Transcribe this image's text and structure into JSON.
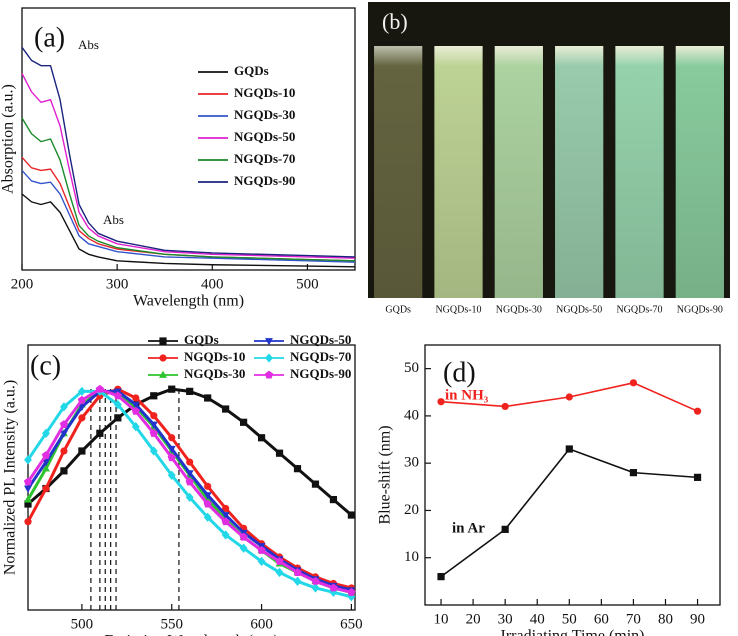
{
  "chart_data": [
    {
      "type": "line",
      "title": "(a)",
      "xlabel": "Wavelength (nm)",
      "ylabel": "Absorption (a.u.)",
      "x": [
        200,
        210,
        220,
        230,
        240,
        250,
        260,
        270,
        280,
        300,
        350,
        400,
        500,
        550
      ],
      "xlim": [
        200,
        550
      ],
      "xticks": [
        200,
        300,
        400,
        500
      ],
      "ylim": [
        0,
        1
      ],
      "legend": "right",
      "annotations": [
        "Abs",
        "Abs"
      ],
      "series": [
        {
          "name": "GQDs",
          "color": "#111111",
          "values": [
            0.29,
            0.26,
            0.25,
            0.26,
            0.22,
            0.15,
            0.08,
            0.06,
            0.05,
            0.035,
            0.025,
            0.02,
            0.015,
            0.012
          ]
        },
        {
          "name": "NGQDs-10",
          "color": "#e8262a",
          "values": [
            0.43,
            0.39,
            0.38,
            0.385,
            0.33,
            0.24,
            0.15,
            0.12,
            0.1,
            0.08,
            0.06,
            0.05,
            0.04,
            0.035
          ]
        },
        {
          "name": "NGQDs-30",
          "color": "#3355cc",
          "values": [
            0.38,
            0.34,
            0.33,
            0.335,
            0.29,
            0.21,
            0.13,
            0.1,
            0.09,
            0.07,
            0.05,
            0.045,
            0.035,
            0.03
          ]
        },
        {
          "name": "NGQDs-50",
          "color": "#e020d0",
          "values": [
            0.75,
            0.68,
            0.64,
            0.65,
            0.55,
            0.38,
            0.22,
            0.16,
            0.13,
            0.1,
            0.07,
            0.06,
            0.05,
            0.045
          ]
        },
        {
          "name": "NGQDs-70",
          "color": "#1a8a2a",
          "values": [
            0.58,
            0.52,
            0.49,
            0.5,
            0.42,
            0.29,
            0.17,
            0.13,
            0.11,
            0.085,
            0.06,
            0.05,
            0.04,
            0.035
          ]
        },
        {
          "name": "NGQDs-90",
          "color": "#1a237e",
          "values": [
            0.85,
            0.8,
            0.78,
            0.78,
            0.65,
            0.44,
            0.25,
            0.18,
            0.14,
            0.11,
            0.075,
            0.065,
            0.055,
            0.05
          ]
        }
      ]
    },
    {
      "type": "photo",
      "title": "(b)",
      "categories": [
        "GQDs",
        "NGQDs-10",
        "NGQDs-30",
        "NGQDs-50",
        "NGQDs-70",
        "NGQDs-90"
      ],
      "colors": [
        "#7d7d50",
        "#c6dc9c",
        "#b4dca8",
        "#9fd4b4",
        "#9cdcb4",
        "#8ed4a4"
      ]
    },
    {
      "type": "line",
      "title": "(c)",
      "xlabel": "Emission Wavelength (nm)",
      "ylabel": "Normalized PL Intensity (a.u.)",
      "x": [
        470,
        480,
        490,
        500,
        510,
        520,
        530,
        540,
        550,
        560,
        570,
        580,
        590,
        600,
        610,
        620,
        630,
        640,
        650
      ],
      "xlim": [
        470,
        652
      ],
      "xticks": [
        500,
        550,
        600,
        650
      ],
      "ylim": [
        0,
        1.2
      ],
      "legend": "top",
      "peak_lines": [
        505,
        510,
        513,
        516,
        519,
        554
      ],
      "series": [
        {
          "name": "GQDs",
          "color": "#111111",
          "marker": "square",
          "values": [
            0.48,
            0.55,
            0.63,
            0.72,
            0.8,
            0.87,
            0.93,
            0.97,
            1.0,
            0.99,
            0.96,
            0.91,
            0.85,
            0.78,
            0.71,
            0.64,
            0.57,
            0.5,
            0.43
          ]
        },
        {
          "name": "NGQDs-10",
          "color": "#f0221e",
          "marker": "circle",
          "values": [
            0.4,
            0.55,
            0.72,
            0.87,
            0.97,
            1.0,
            0.96,
            0.88,
            0.78,
            0.67,
            0.56,
            0.46,
            0.37,
            0.3,
            0.24,
            0.19,
            0.15,
            0.12,
            0.1
          ]
        },
        {
          "name": "NGQDs-30",
          "color": "#2ec42e",
          "marker": "triangle-up",
          "values": [
            0.5,
            0.64,
            0.8,
            0.93,
            0.99,
            0.98,
            0.92,
            0.83,
            0.72,
            0.61,
            0.5,
            0.41,
            0.33,
            0.27,
            0.21,
            0.17,
            0.13,
            0.1,
            0.08
          ]
        },
        {
          "name": "NGQDs-50",
          "color": "#2233cc",
          "marker": "triangle-down",
          "values": [
            0.55,
            0.67,
            0.8,
            0.92,
            0.99,
            0.99,
            0.93,
            0.84,
            0.73,
            0.62,
            0.52,
            0.43,
            0.35,
            0.29,
            0.23,
            0.18,
            0.14,
            0.11,
            0.09
          ]
        },
        {
          "name": "NGQDs-70",
          "color": "#22d8e8",
          "marker": "diamond",
          "values": [
            0.68,
            0.8,
            0.92,
            0.99,
            0.99,
            0.93,
            0.83,
            0.72,
            0.61,
            0.51,
            0.42,
            0.34,
            0.28,
            0.22,
            0.17,
            0.13,
            0.1,
            0.08,
            0.06
          ]
        },
        {
          "name": "NGQDs-90",
          "color": "#e22ee2",
          "marker": "pentagon",
          "values": [
            0.58,
            0.7,
            0.84,
            0.95,
            1.0,
            0.97,
            0.9,
            0.8,
            0.69,
            0.58,
            0.48,
            0.4,
            0.33,
            0.27,
            0.22,
            0.17,
            0.13,
            0.1,
            0.08
          ]
        }
      ]
    },
    {
      "type": "line",
      "title": "(d)",
      "xlabel": "Irradiating Time (min)",
      "ylabel": "Blue-shift (nm)",
      "x": [
        10,
        30,
        50,
        70,
        90
      ],
      "xlim": [
        5,
        97
      ],
      "xticks": [
        10,
        20,
        30,
        40,
        50,
        60,
        70,
        80,
        90
      ],
      "ylim": [
        0,
        55
      ],
      "yticks": [
        10,
        20,
        30,
        40,
        50
      ],
      "legend": "inline",
      "series": [
        {
          "name": "in NH₃",
          "color": "#f0221e",
          "marker": "circle",
          "values": [
            43,
            42,
            44,
            47,
            41
          ]
        },
        {
          "name": "in Ar",
          "color": "#111111",
          "marker": "square",
          "values": [
            6,
            16,
            33,
            28,
            27
          ]
        }
      ]
    }
  ]
}
